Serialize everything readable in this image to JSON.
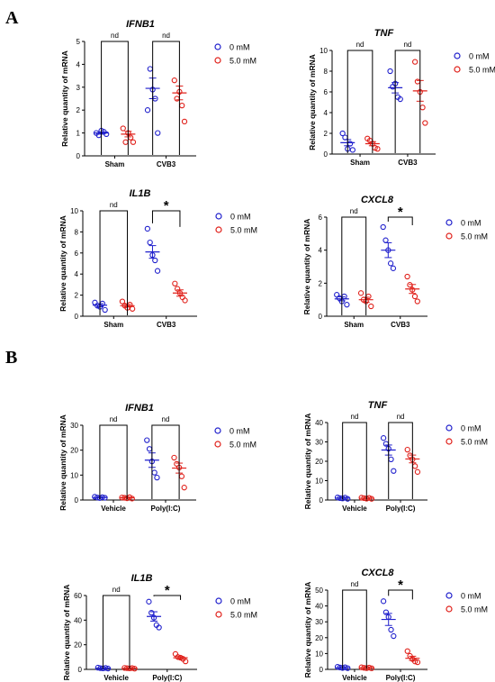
{
  "colors": {
    "group_a": "#1f1fcc",
    "group_b": "#e0201a",
    "axis": "#000000"
  },
  "panels": [
    {
      "letter": "A"
    },
    {
      "letter": "B"
    }
  ],
  "chart_data": [
    {
      "type": "scatter",
      "panel": "A",
      "title": "IFNB1",
      "ylabel": "Relative quantity of mRNA",
      "categories": [
        "Sham",
        "CVB3"
      ],
      "ylim": [
        0,
        5
      ],
      "yticks": [
        0,
        1,
        2,
        3,
        4,
        5
      ],
      "legend": {
        "position": "right",
        "entries": [
          "0 mM",
          "5.0 mM"
        ]
      },
      "series": [
        {
          "name": "0 mM",
          "points": [
            [
              1.0,
              0.9,
              1.1,
              1.05,
              0.95
            ],
            [
              2.0,
              3.8,
              2.9,
              2.5,
              1.0
            ]
          ],
          "mean": [
            1.0,
            2.95
          ],
          "sem": [
            0.05,
            0.45
          ]
        },
        {
          "name": "5.0 mM",
          "points": [
            [
              1.2,
              0.6,
              1.0,
              0.8,
              0.6
            ],
            [
              3.3,
              2.5,
              2.8,
              2.2,
              1.5
            ]
          ],
          "mean": [
            0.95,
            2.75
          ],
          "sem": [
            0.12,
            0.3
          ]
        }
      ],
      "comparisons": [
        {
          "category": "Sham",
          "label": "nd",
          "bracket_y": 5
        },
        {
          "category": "CVB3",
          "label": "nd",
          "bracket_y": 5
        }
      ]
    },
    {
      "type": "scatter",
      "panel": "A",
      "title": "TNF",
      "ylabel": "Relative quantity of mRNA",
      "categories": [
        "Sham",
        "CVB3"
      ],
      "ylim": [
        0,
        10
      ],
      "yticks": [
        0,
        2,
        4,
        6,
        8,
        10
      ],
      "legend": {
        "position": "right",
        "entries": [
          "0 mM",
          "5.0 mM"
        ]
      },
      "series": [
        {
          "name": "0 mM",
          "points": [
            [
              2.0,
              1.6,
              0.5,
              1.0,
              0.4
            ],
            [
              8.0,
              6.5,
              6.8,
              5.5,
              5.3
            ]
          ],
          "mean": [
            1.1,
            6.4
          ],
          "sem": [
            0.3,
            0.5
          ]
        },
        {
          "name": "5.0 mM",
          "points": [
            [
              1.5,
              1.3,
              1.0,
              0.6,
              0.5
            ],
            [
              8.9,
              7.0,
              6.0,
              4.5,
              3.0
            ]
          ],
          "mean": [
            1.0,
            6.1
          ],
          "sem": [
            0.2,
            1.0
          ]
        }
      ],
      "comparisons": [
        {
          "category": "Sham",
          "label": "nd",
          "bracket_y": 10
        },
        {
          "category": "CVB3",
          "label": "nd",
          "bracket_y": 10
        }
      ]
    },
    {
      "type": "scatter",
      "panel": "A",
      "title": "IL1B",
      "ylabel": "Relative quantity of mRNA",
      "categories": [
        "Sham",
        "CVB3"
      ],
      "ylim": [
        0,
        10
      ],
      "yticks": [
        0,
        2,
        4,
        6,
        8,
        10
      ],
      "legend": {
        "position": "right",
        "entries": [
          "0 mM",
          "5.0 mM"
        ]
      },
      "series": [
        {
          "name": "0 mM",
          "points": [
            [
              1.3,
              1.0,
              0.9,
              1.2,
              0.6
            ],
            [
              8.3,
              7.0,
              5.8,
              5.3,
              4.3
            ]
          ],
          "mean": [
            1.05,
            6.1
          ],
          "sem": [
            0.15,
            0.6
          ]
        },
        {
          "name": "5.0 mM",
          "points": [
            [
              1.4,
              1.0,
              0.8,
              1.1,
              0.7
            ],
            [
              3.1,
              2.6,
              2.2,
              1.8,
              1.5
            ]
          ],
          "mean": [
            1.0,
            2.2
          ],
          "sem": [
            0.12,
            0.3
          ]
        }
      ],
      "comparisons": [
        {
          "category": "Sham",
          "label": "nd",
          "bracket_y": 10
        },
        {
          "category": "CVB3",
          "label": "*",
          "bracket_y": 10
        }
      ]
    },
    {
      "type": "scatter",
      "panel": "A",
      "title": "CXCL8",
      "ylabel": "Relative quantity of mRNA",
      "categories": [
        "Sham",
        "CVB3"
      ],
      "ylim": [
        0,
        6
      ],
      "yticks": [
        0,
        2,
        4,
        6
      ],
      "legend": {
        "position": "right",
        "entries": [
          "0 mM",
          "5.0 mM"
        ]
      },
      "series": [
        {
          "name": "0 mM",
          "points": [
            [
              1.3,
              1.1,
              0.9,
              1.2,
              0.7
            ],
            [
              5.4,
              4.6,
              4.0,
              3.2,
              2.9
            ]
          ],
          "mean": [
            1.05,
            4.0
          ],
          "sem": [
            0.12,
            0.45
          ]
        },
        {
          "name": "5.0 mM",
          "points": [
            [
              1.4,
              1.0,
              0.9,
              1.2,
              0.6
            ],
            [
              2.4,
              1.9,
              1.6,
              1.2,
              0.9
            ]
          ],
          "mean": [
            1.0,
            1.65
          ],
          "sem": [
            0.15,
            0.27
          ]
        }
      ],
      "comparisons": [
        {
          "category": "Sham",
          "label": "nd",
          "bracket_y": 6
        },
        {
          "category": "CVB3",
          "label": "*",
          "bracket_y": 6
        }
      ]
    },
    {
      "type": "scatter",
      "panel": "B",
      "title": "IFNB1",
      "ylabel": "Relative quantity of mRNA",
      "categories": [
        "Vehicle",
        "Poly(I:C)"
      ],
      "ylim": [
        0,
        30
      ],
      "yticks": [
        0,
        10,
        20,
        30
      ],
      "legend": {
        "position": "right",
        "entries": [
          "0 mM",
          "5.0 mM"
        ]
      },
      "series": [
        {
          "name": "0 mM",
          "points": [
            [
              1.3,
              1.0,
              0.8,
              1.1,
              0.9
            ],
            [
              24.0,
              20.5,
              15.5,
              11.0,
              9.0
            ]
          ],
          "mean": [
            1.0,
            16.0
          ],
          "sem": [
            0.1,
            2.9
          ]
        },
        {
          "name": "5.0 mM",
          "points": [
            [
              1.0,
              0.9,
              0.7,
              1.1,
              0.6
            ],
            [
              17.0,
              14.5,
              13.0,
              9.5,
              5.0
            ]
          ],
          "mean": [
            0.9,
            12.8
          ],
          "sem": [
            0.1,
            2.0
          ]
        }
      ],
      "comparisons": [
        {
          "category": "Vehicle",
          "label": "nd",
          "bracket_y": 30
        },
        {
          "category": "Poly(I:C)",
          "label": "nd",
          "bracket_y": 30
        }
      ]
    },
    {
      "type": "scatter",
      "panel": "B",
      "title": "TNF",
      "ylabel": "Relative quantity of mRNA",
      "categories": [
        "Vehicle",
        "Poly(I:C)"
      ],
      "ylim": [
        0,
        40
      ],
      "yticks": [
        0,
        10,
        20,
        30,
        40
      ],
      "legend": {
        "position": "right",
        "entries": [
          "0 mM",
          "5.0 mM"
        ]
      },
      "series": [
        {
          "name": "0 mM",
          "points": [
            [
              1.3,
              1.0,
              0.8,
              1.2,
              0.6
            ],
            [
              32.0,
              29.0,
              26.5,
              21.0,
              15.0
            ]
          ],
          "mean": [
            1.0,
            25.8
          ],
          "sem": [
            0.12,
            2.6
          ]
        },
        {
          "name": "5.0 mM",
          "points": [
            [
              1.2,
              1.0,
              0.7,
              1.1,
              0.6
            ],
            [
              26.0,
              23.0,
              21.0,
              17.5,
              14.5
            ]
          ],
          "mean": [
            0.9,
            21.2
          ],
          "sem": [
            0.1,
            2.0
          ]
        }
      ],
      "comparisons": [
        {
          "category": "Vehicle",
          "label": "nd",
          "bracket_y": 40
        },
        {
          "category": "Poly(I:C)",
          "label": "nd",
          "bracket_y": 40
        }
      ]
    },
    {
      "type": "scatter",
      "panel": "B",
      "title": "IL1B",
      "ylabel": "Relative quantity of mRNA",
      "categories": [
        "Vehicle",
        "Poly(I:C)"
      ],
      "ylim": [
        0,
        60
      ],
      "yticks": [
        0,
        20,
        40,
        60
      ],
      "legend": {
        "position": "right",
        "entries": [
          "0 mM",
          "5.0 mM"
        ]
      },
      "series": [
        {
          "name": "0 mM",
          "points": [
            [
              1.4,
              1.0,
              0.8,
              1.2,
              0.7
            ],
            [
              55.0,
              46.0,
              42.0,
              36.0,
              34.0
            ]
          ],
          "mean": [
            1.0,
            43.0
          ],
          "sem": [
            0.12,
            3.8
          ]
        },
        {
          "name": "5.0 mM",
          "points": [
            [
              1.2,
              1.0,
              0.8,
              1.1,
              0.6
            ],
            [
              12.5,
              10.0,
              9.5,
              8.5,
              6.5
            ]
          ],
          "mean": [
            0.95,
            9.4
          ],
          "sem": [
            0.1,
            1.0
          ]
        }
      ],
      "comparisons": [
        {
          "category": "Vehicle",
          "label": "nd",
          "bracket_y": 60
        },
        {
          "category": "Poly(I:C)",
          "label": "*",
          "bracket_y": 60
        }
      ]
    },
    {
      "type": "scatter",
      "panel": "B",
      "title": "CXCL8",
      "ylabel": "Relative quantity of mRNA",
      "categories": [
        "Vehicle",
        "Poly(I:C)"
      ],
      "ylim": [
        0,
        50
      ],
      "yticks": [
        0,
        10,
        20,
        30,
        40,
        50
      ],
      "legend": {
        "position": "right",
        "entries": [
          "0 mM",
          "5.0 mM"
        ]
      },
      "series": [
        {
          "name": "0 mM",
          "points": [
            [
              1.6,
              1.2,
              0.9,
              1.3,
              0.8
            ],
            [
              43.0,
              36.0,
              33.0,
              25.0,
              21.0
            ]
          ],
          "mean": [
            1.1,
            31.5
          ],
          "sem": [
            0.15,
            3.8
          ]
        },
        {
          "name": "5.0 mM",
          "points": [
            [
              1.3,
              1.0,
              0.8,
              1.1,
              0.7
            ],
            [
              11.5,
              8.5,
              6.5,
              5.0,
              4.5
            ]
          ],
          "mean": [
            1.0,
            7.0
          ],
          "sem": [
            0.1,
            1.3
          ]
        }
      ],
      "comparisons": [
        {
          "category": "Vehicle",
          "label": "nd",
          "bracket_y": 50
        },
        {
          "category": "Poly(I:C)",
          "label": "*",
          "bracket_y": 50
        }
      ]
    }
  ]
}
